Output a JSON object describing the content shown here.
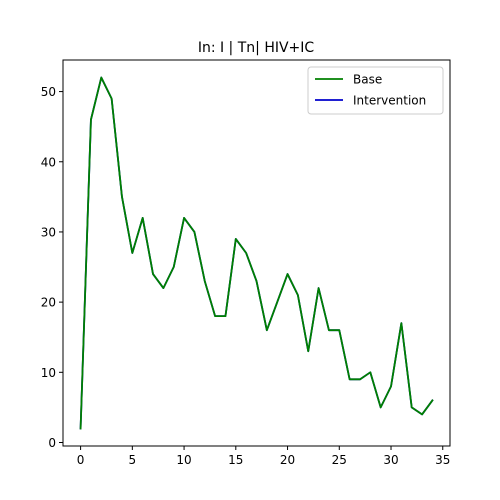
{
  "chart_data": {
    "type": "line",
    "title": "In: I | Tn| HIV+IC",
    "xlabel": "",
    "ylabel": "",
    "xlim": [
      -1.7,
      35.7
    ],
    "ylim": [
      -0.5,
      54.5
    ],
    "xticks": [
      0,
      5,
      10,
      15,
      20,
      25,
      30,
      35
    ],
    "yticks": [
      0,
      10,
      20,
      30,
      40,
      50
    ],
    "grid": false,
    "legend_position": "top-right",
    "x": [
      0,
      1,
      2,
      3,
      4,
      5,
      6,
      7,
      8,
      9,
      10,
      11,
      12,
      13,
      14,
      15,
      16,
      17,
      18,
      19,
      20,
      21,
      22,
      23,
      24,
      25,
      26,
      27,
      28,
      29,
      30,
      31,
      32,
      33,
      34
    ],
    "series": [
      {
        "name": "Base",
        "color": "#008000",
        "values": [
          2,
          46,
          52,
          49,
          35,
          27,
          32,
          24,
          22,
          25,
          32,
          30,
          23,
          18,
          18,
          29,
          27,
          23,
          16,
          20,
          24,
          21,
          13,
          22,
          16,
          16,
          9,
          9,
          10,
          5,
          8,
          17,
          5,
          4,
          6
        ]
      },
      {
        "name": "Intervention",
        "color": "#0000cc",
        "values": [
          2,
          46,
          52,
          49,
          35,
          27,
          32,
          24,
          22,
          25,
          32,
          30,
          23,
          18,
          18,
          29,
          27,
          23,
          16,
          20,
          24,
          21,
          13,
          22,
          16,
          16,
          9,
          9,
          10,
          5,
          8,
          17,
          5,
          4,
          6
        ]
      }
    ]
  }
}
